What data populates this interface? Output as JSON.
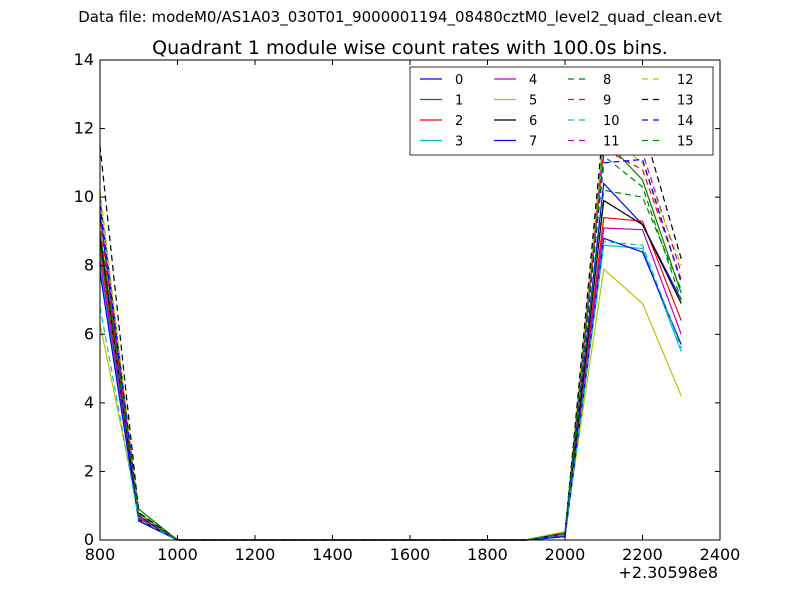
{
  "header": {
    "data_file": "Data file: modeM0/AS1A03_030T01_9000001194_08480cztM0_level2_quad_clean.evt"
  },
  "chart_data": {
    "type": "line",
    "title": "Quadrant 1 module wise count rates with 100.0s bins.",
    "xlabel": "",
    "ylabel": "",
    "x_offset_label": "+2.30598e8",
    "xlim": [
      800,
      2400
    ],
    "ylim": [
      0,
      14
    ],
    "x_ticks": [
      800,
      1000,
      1200,
      1400,
      1600,
      1800,
      2000,
      2200,
      2400
    ],
    "y_ticks": [
      0,
      2,
      4,
      6,
      8,
      10,
      12,
      14
    ],
    "grid": false,
    "legend_position": "top-right",
    "legend_columns": 4,
    "x": [
      800,
      900,
      1000,
      1100,
      1200,
      1300,
      1400,
      1500,
      1600,
      1700,
      1800,
      1900,
      2000,
      2100,
      2200,
      2300
    ],
    "series": [
      {
        "name": "0",
        "color": "#0000ff",
        "dash": false,
        "values": [
          9.5,
          0.7,
          0,
          0,
          0,
          0,
          0,
          0,
          0,
          0,
          0,
          0,
          0.15,
          10.4,
          9.2,
          7.0
        ]
      },
      {
        "name": "1",
        "color": "#008000",
        "dash": false,
        "values": [
          9.0,
          0.9,
          0,
          0,
          0,
          0,
          0,
          0,
          0,
          0,
          0,
          0,
          0.2,
          11.7,
          10.5,
          7.2
        ]
      },
      {
        "name": "2",
        "color": "#ff0000",
        "dash": false,
        "values": [
          8.5,
          0.65,
          0,
          0,
          0,
          0,
          0,
          0,
          0,
          0,
          0,
          0,
          0.15,
          9.4,
          9.3,
          6.4
        ]
      },
      {
        "name": "3",
        "color": "#00bfbf",
        "dash": false,
        "values": [
          8.0,
          0.6,
          0,
          0,
          0,
          0,
          0,
          0,
          0,
          0,
          0,
          0,
          0.1,
          8.6,
          8.5,
          5.5
        ]
      },
      {
        "name": "4",
        "color": "#bf00bf",
        "dash": false,
        "values": [
          8.2,
          0.7,
          0,
          0,
          0,
          0,
          0,
          0,
          0,
          0,
          0,
          0,
          0.15,
          9.1,
          9.05,
          6.0
        ]
      },
      {
        "name": "5",
        "color": "#bfbf00",
        "dash": false,
        "values": [
          6.3,
          0.8,
          0,
          0,
          0,
          0,
          0,
          0,
          0,
          0,
          0,
          0,
          0.25,
          7.9,
          6.9,
          4.2
        ]
      },
      {
        "name": "6",
        "color": "#000000",
        "dash": false,
        "values": [
          8.8,
          0.6,
          0,
          0,
          0,
          0,
          0,
          0,
          0,
          0,
          0,
          0,
          0.1,
          9.9,
          9.2,
          6.9
        ]
      },
      {
        "name": "7",
        "color": "#0000ff",
        "dash": false,
        "values": [
          7.8,
          0.55,
          0,
          0,
          0,
          0,
          0,
          0,
          0,
          0,
          0,
          0,
          0.1,
          8.8,
          8.4,
          5.7
        ]
      },
      {
        "name": "8",
        "color": "#008000",
        "dash": true,
        "values": [
          10.0,
          0.8,
          0,
          0,
          0,
          0,
          0,
          0,
          0,
          0,
          0,
          0,
          0.2,
          10.2,
          10.0,
          7.3
        ]
      },
      {
        "name": "9",
        "color": "#ff0000",
        "dash": true,
        "values": [
          9.3,
          0.75,
          0,
          0,
          0,
          0,
          0,
          0,
          0,
          0,
          0,
          0,
          0.2,
          11.4,
          10.8,
          7.6
        ]
      },
      {
        "name": "10",
        "color": "#00bfbf",
        "dash": true,
        "values": [
          6.8,
          0.6,
          0,
          0,
          0,
          0,
          0,
          0,
          0,
          0,
          0,
          0,
          0.15,
          8.7,
          8.6,
          5.6
        ]
      },
      {
        "name": "11",
        "color": "#bf00bf",
        "dash": true,
        "values": [
          9.6,
          0.7,
          0,
          0,
          0,
          0,
          0,
          0,
          0,
          0,
          0,
          0,
          0.2,
          11.6,
          11.3,
          7.8
        ]
      },
      {
        "name": "12",
        "color": "#bfbf00",
        "dash": true,
        "values": [
          10.2,
          0.75,
          0,
          0,
          0,
          0,
          0,
          0,
          0,
          0,
          0,
          0,
          0.25,
          11.9,
          11.0,
          8.0
        ]
      },
      {
        "name": "13",
        "color": "#000000",
        "dash": true,
        "values": [
          11.5,
          0.8,
          0,
          0,
          0,
          0,
          0,
          0,
          0,
          0,
          0,
          0,
          0.2,
          12.2,
          12.1,
          8.2
        ]
      },
      {
        "name": "14",
        "color": "#0000ff",
        "dash": true,
        "values": [
          9.8,
          0.7,
          0,
          0,
          0,
          0,
          0,
          0,
          0,
          0,
          0,
          0,
          0.2,
          11.0,
          11.1,
          7.5
        ]
      },
      {
        "name": "15",
        "color": "#008000",
        "dash": true,
        "values": [
          8.6,
          0.75,
          0,
          0,
          0,
          0,
          0,
          0,
          0,
          0,
          0,
          0,
          0.2,
          11.2,
          10.3,
          7.0
        ]
      }
    ]
  }
}
